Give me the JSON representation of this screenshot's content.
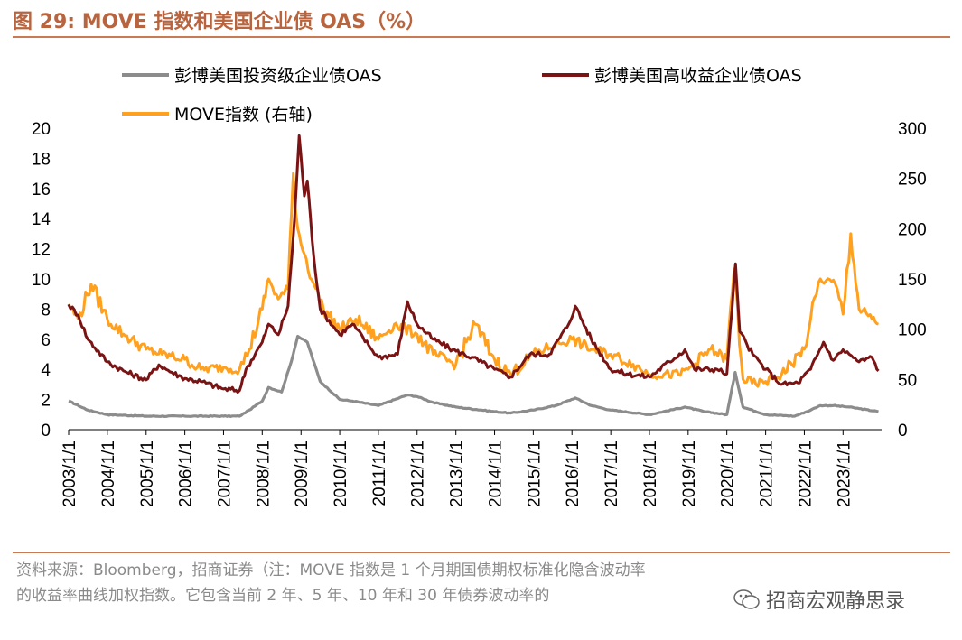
{
  "header": {
    "title": "图 29:   MOVE 指数和美国企业债 OAS（%）"
  },
  "footer": {
    "source_line1": "资料来源：Bloomberg，招商证券（注：MOVE 指数是 1 个月期国债期权标准化隐含波动率",
    "source_line2": "的收益率曲线加权指数。它包含当前 2 年、5 年、10 年和 30 年债券波动率的"
  },
  "watermark": {
    "text": "招商宏观静思录",
    "icon": "wechat-icon"
  },
  "chart_data": {
    "type": "line",
    "title": "",
    "xlabel": "",
    "ylabel_left": "",
    "ylabel_right": "",
    "left_axis": {
      "ylim": [
        0,
        20
      ],
      "ticks": [
        "0",
        "2",
        "4",
        "6",
        "8",
        "10",
        "12",
        "14",
        "16",
        "18",
        "20"
      ]
    },
    "right_axis": {
      "ylim": [
        0,
        300
      ],
      "ticks": [
        "0",
        "50",
        "100",
        "150",
        "200",
        "250",
        "300"
      ]
    },
    "x_ticks": [
      "2003/1/1",
      "2004/1/1",
      "2005/1/1",
      "2006/1/1",
      "2007/1/1",
      "2008/1/1",
      "2009/1/1",
      "2010/1/1",
      "2011/1/1",
      "2012/1/1",
      "2013/1/1",
      "2014/1/1",
      "2015/1/1",
      "2016/1/1",
      "2017/1/1",
      "2018/1/1",
      "2019/1/1",
      "2020/1/1",
      "2021/1/1",
      "2022/1/1",
      "2023/1/1"
    ],
    "x_range": [
      "2003/1/1",
      "2023/12/31"
    ],
    "legend_placement": "top",
    "series": [
      {
        "name": "彭博美国投资级企业债OAS",
        "axis": "left",
        "color": "#8c8c8c",
        "x": [
          "2003/1/1",
          "2003/7/1",
          "2004/1/1",
          "2005/1/1",
          "2006/1/1",
          "2007/1/1",
          "2007/6/1",
          "2007/9/1",
          "2008/1/1",
          "2008/3/1",
          "2008/7/1",
          "2008/10/1",
          "2008/12/1",
          "2009/3/1",
          "2009/7/1",
          "2010/1/1",
          "2010/5/1",
          "2011/1/1",
          "2011/10/1",
          "2012/1/1",
          "2012/6/1",
          "2013/1/1",
          "2014/1/1",
          "2014/6/1",
          "2015/1/1",
          "2015/8/1",
          "2016/2/1",
          "2016/7/1",
          "2017/1/1",
          "2018/1/1",
          "2018/12/1",
          "2019/6/1",
          "2020/1/1",
          "2020/3/20",
          "2020/6/1",
          "2021/1/1",
          "2021/10/1",
          "2022/3/1",
          "2022/6/1",
          "2022/10/1",
          "2023/3/1",
          "2023/6/1",
          "2023/12/1"
        ],
        "values": [
          1.9,
          1.3,
          1.0,
          0.9,
          0.9,
          0.9,
          0.9,
          1.3,
          1.9,
          2.8,
          2.5,
          4.5,
          6.2,
          5.8,
          3.2,
          2.0,
          1.9,
          1.6,
          2.3,
          2.2,
          1.8,
          1.5,
          1.2,
          1.1,
          1.3,
          1.6,
          2.1,
          1.6,
          1.3,
          1.0,
          1.5,
          1.2,
          1.0,
          3.8,
          1.5,
          1.0,
          0.9,
          1.3,
          1.6,
          1.6,
          1.5,
          1.4,
          1.2
        ]
      },
      {
        "name": "彭博美国高收益企业债OAS",
        "axis": "left",
        "color": "#7a1414",
        "x": [
          "2003/1/1",
          "2003/4/1",
          "2003/7/1",
          "2004/1/1",
          "2004/6/1",
          "2005/1/1",
          "2005/5/1",
          "2005/9/1",
          "2006/1/1",
          "2006/6/1",
          "2007/1/1",
          "2007/6/1",
          "2007/8/1",
          "2008/1/1",
          "2008/3/1",
          "2008/6/1",
          "2008/9/1",
          "2008/11/1",
          "2008/12/15",
          "2009/2/1",
          "2009/3/1",
          "2009/5/1",
          "2009/7/1",
          "2010/1/1",
          "2010/5/1",
          "2010/10/1",
          "2011/1/1",
          "2011/7/1",
          "2011/10/1",
          "2012/1/1",
          "2012/6/1",
          "2012/12/1",
          "2013/6/1",
          "2014/1/1",
          "2014/6/1",
          "2014/12/1",
          "2015/6/1",
          "2015/12/1",
          "2016/2/1",
          "2016/7/1",
          "2017/1/1",
          "2017/6/1",
          "2018/1/1",
          "2018/12/1",
          "2019/3/1",
          "2019/10/1",
          "2020/1/1",
          "2020/3/23",
          "2020/5/1",
          "2020/9/1",
          "2021/1/1",
          "2021/6/1",
          "2021/11/1",
          "2022/3/1",
          "2022/7/1",
          "2022/10/1",
          "2023/1/1",
          "2023/3/1",
          "2023/6/1",
          "2023/10/1",
          "2023/12/1"
        ],
        "values": [
          8.3,
          7.6,
          6.0,
          4.5,
          3.9,
          3.3,
          4.3,
          3.8,
          3.4,
          3.2,
          2.7,
          2.6,
          4.0,
          5.8,
          7.0,
          6.3,
          8.2,
          14.0,
          19.5,
          15.5,
          16.5,
          11.5,
          8.0,
          6.3,
          7.0,
          5.6,
          4.8,
          5.0,
          8.5,
          7.0,
          6.0,
          5.3,
          4.8,
          4.0,
          3.5,
          5.0,
          5.0,
          7.0,
          8.2,
          6.0,
          4.0,
          3.7,
          3.5,
          5.3,
          4.0,
          4.0,
          3.7,
          11.0,
          6.5,
          5.0,
          4.0,
          3.0,
          3.1,
          4.0,
          5.8,
          4.6,
          5.3,
          5.0,
          4.5,
          4.8,
          3.9
        ]
      },
      {
        "name": "MOVE指数 (右轴)",
        "axis": "right",
        "color": "#ffa01e",
        "x": [
          "2003/1/1",
          "2003/4/1",
          "2003/8/1",
          "2004/1/1",
          "2004/6/1",
          "2005/1/1",
          "2005/6/1",
          "2006/1/1",
          "2006/6/1",
          "2007/1/1",
          "2007/6/1",
          "2007/9/1",
          "2008/1/1",
          "2008/3/1",
          "2008/6/1",
          "2008/9/1",
          "2008/10/20",
          "2008/12/1",
          "2009/2/1",
          "2009/5/1",
          "2009/8/1",
          "2010/1/1",
          "2010/6/1",
          "2011/1/1",
          "2011/6/1",
          "2012/1/1",
          "2012/6/1",
          "2013/1/1",
          "2013/7/1",
          "2014/1/1",
          "2014/6/1",
          "2015/1/1",
          "2015/8/1",
          "2016/1/1",
          "2016/7/1",
          "2017/1/1",
          "2017/8/1",
          "2018/1/1",
          "2018/10/1",
          "2019/1/1",
          "2019/8/1",
          "2020/1/1",
          "2020/3/10",
          "2020/6/1",
          "2020/10/1",
          "2021/1/1",
          "2021/6/1",
          "2022/1/1",
          "2022/3/1",
          "2022/6/1",
          "2022/10/20",
          "2023/1/1",
          "2023/3/15",
          "2023/6/1",
          "2023/10/1",
          "2023/12/1"
        ],
        "values": [
          125,
          110,
          145,
          110,
          95,
          80,
          75,
          70,
          60,
          62,
          60,
          80,
          120,
          150,
          130,
          140,
          255,
          200,
          175,
          145,
          120,
          100,
          110,
          90,
          105,
          95,
          75,
          65,
          105,
          70,
          55,
          75,
          85,
          90,
          80,
          75,
          65,
          55,
          55,
          60,
          80,
          70,
          160,
          50,
          45,
          48,
          55,
          80,
          110,
          150,
          145,
          115,
          195,
          120,
          110,
          105
        ]
      }
    ]
  }
}
